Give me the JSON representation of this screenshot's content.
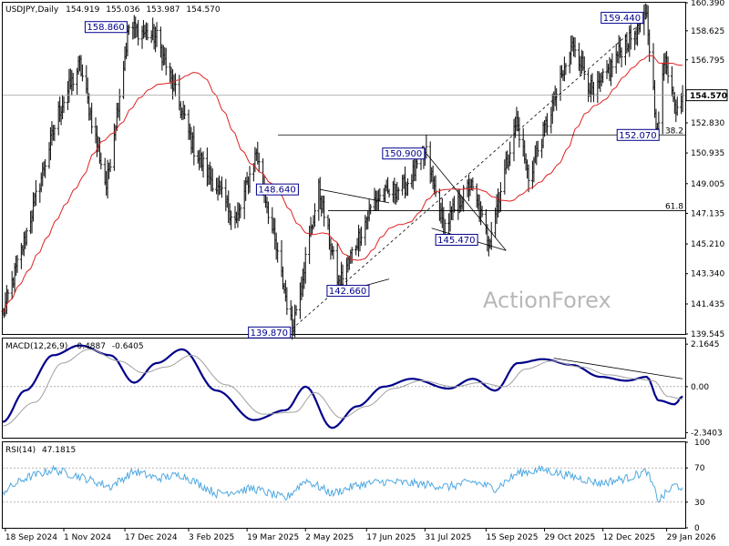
{
  "chart_data": [
    {
      "type": "ohlc",
      "panel": "price",
      "header": {
        "symbol": "USDJPY,Daily",
        "open": "154.919",
        "high": "155.036",
        "low": "153.987",
        "close": "154.570"
      },
      "ylim": [
        139.545,
        160.39
      ],
      "y_tick_labels": [
        "160.390",
        "158.625",
        "156.795",
        "154.570",
        "152.830",
        "150.935",
        "149.005",
        "147.135",
        "145.210",
        "143.340",
        "141.435",
        "139.545"
      ],
      "last_price_label": "154.570",
      "last_price": 154.57,
      "ma_line_color": "#e02020",
      "bar_color": "#1a1a1a",
      "horizontal_levels": [
        {
          "label": "38.2",
          "value": 152.07
        },
        {
          "label": "61.8",
          "value": 147.3
        }
      ],
      "callouts": [
        {
          "label": "158.860",
          "value": 158.86,
          "date": "2024-12-20"
        },
        {
          "label": "148.640",
          "value": 148.64,
          "date": "2025-04-28"
        },
        {
          "label": "142.660",
          "value": 142.66,
          "date": "2025-05-21"
        },
        {
          "label": "139.870",
          "value": 139.87,
          "date": "2025-04-22"
        },
        {
          "label": "150.900",
          "value": 150.9,
          "date": "2025-08-01"
        },
        {
          "label": "145.470",
          "value": 145.47,
          "date": "2025-09-10"
        },
        {
          "label": "159.440",
          "value": 159.44,
          "date": "2026-01-14"
        },
        {
          "label": "152.070",
          "value": 152.07,
          "date": "2026-01-26"
        }
      ],
      "pivots": [
        {
          "date": "2024-09-16",
          "value": 140.8
        },
        {
          "date": "2024-10-01",
          "value": 145.0
        },
        {
          "date": "2024-10-28",
          "value": 153.5
        },
        {
          "date": "2024-11-13",
          "value": 156.5
        },
        {
          "date": "2024-12-03",
          "value": 148.8
        },
        {
          "date": "2024-12-20",
          "value": 158.86
        },
        {
          "date": "2025-01-10",
          "value": 158.2
        },
        {
          "date": "2025-02-07",
          "value": 151.2
        },
        {
          "date": "2025-03-11",
          "value": 146.6
        },
        {
          "date": "2025-03-26",
          "value": 151.0
        },
        {
          "date": "2025-04-22",
          "value": 139.87
        },
        {
          "date": "2025-05-12",
          "value": 148.64
        },
        {
          "date": "2025-05-27",
          "value": 142.66
        },
        {
          "date": "2025-06-23",
          "value": 148.0
        },
        {
          "date": "2025-07-16",
          "value": 148.9
        },
        {
          "date": "2025-08-01",
          "value": 150.9
        },
        {
          "date": "2025-08-14",
          "value": 146.2
        },
        {
          "date": "2025-09-03",
          "value": 149.0
        },
        {
          "date": "2025-09-17",
          "value": 145.47
        },
        {
          "date": "2025-10-08",
          "value": 153.0
        },
        {
          "date": "2025-10-17",
          "value": 149.4
        },
        {
          "date": "2025-11-20",
          "value": 157.9
        },
        {
          "date": "2025-12-05",
          "value": 154.5
        },
        {
          "date": "2025-12-26",
          "value": 157.5
        },
        {
          "date": "2026-01-14",
          "value": 159.44
        },
        {
          "date": "2026-01-22",
          "value": 152.07
        },
        {
          "date": "2026-01-28",
          "value": 157.2
        },
        {
          "date": "2026-02-04",
          "value": 153.8
        },
        {
          "date": "2026-02-10",
          "value": 154.57
        }
      ],
      "trendlines": [
        {
          "points": [
            [
              "2025-04-22",
              139.87
            ],
            [
              "2026-01-14",
              159.44
            ]
          ],
          "style": "dashed"
        },
        {
          "points": [
            [
              "2025-05-13",
              148.64
            ],
            [
              "2025-07-04",
              147.8
            ]
          ],
          "style": "solid"
        },
        {
          "points": [
            [
              "2025-05-21",
              142.0
            ],
            [
              "2025-07-04",
              143.0
            ]
          ],
          "style": "solid"
        },
        {
          "points": [
            [
              "2025-08-01",
              150.9
            ],
            [
              "2025-09-30",
              144.8
            ]
          ],
          "style": "solid"
        },
        {
          "points": [
            [
              "2025-08-05",
              146.2
            ],
            [
              "2025-09-30",
              144.8
            ]
          ],
          "style": "solid"
        }
      ],
      "watermark": "ActionForex"
    },
    {
      "type": "line",
      "panel": "macd",
      "header": {
        "label": "MACD(12,26,9)",
        "macd": "-0.4887",
        "signal": "-0.6405"
      },
      "ylim": [
        -2.6,
        2.45
      ],
      "y_tick_labels": [
        "2.1645",
        "0.00",
        "-2.3403"
      ],
      "series": [
        {
          "name": "MACD",
          "color": "#00008b",
          "points": [
            [
              "2024-09-16",
              -1.8
            ],
            [
              "2024-10-03",
              -0.2
            ],
            [
              "2024-10-24",
              1.6
            ],
            [
              "2024-11-13",
              2.1
            ],
            [
              "2024-12-06",
              1.6
            ],
            [
              "2024-12-24",
              0.2
            ],
            [
              "2025-01-10",
              1.2
            ],
            [
              "2025-01-29",
              1.9
            ],
            [
              "2025-02-24",
              -0.2
            ],
            [
              "2025-03-24",
              -1.7
            ],
            [
              "2025-04-17",
              -1.2
            ],
            [
              "2025-05-02",
              0.0
            ],
            [
              "2025-05-22",
              -2.1
            ],
            [
              "2025-06-10",
              -1.0
            ],
            [
              "2025-06-30",
              0.0
            ],
            [
              "2025-07-21",
              0.4
            ],
            [
              "2025-08-18",
              -0.1
            ],
            [
              "2025-09-05",
              0.4
            ],
            [
              "2025-09-22",
              -0.2
            ],
            [
              "2025-10-09",
              1.2
            ],
            [
              "2025-10-28",
              1.4
            ],
            [
              "2025-11-19",
              1.1
            ],
            [
              "2025-12-10",
              0.5
            ],
            [
              "2025-12-30",
              0.3
            ],
            [
              "2026-01-14",
              0.5
            ],
            [
              "2026-01-23",
              -0.7
            ],
            [
              "2026-02-04",
              -0.9
            ],
            [
              "2026-02-10",
              -0.49
            ]
          ]
        },
        {
          "name": "Signal",
          "color": "#a0a0a0",
          "points": [
            [
              "2024-09-16",
              -2.0
            ],
            [
              "2024-10-10",
              -0.8
            ],
            [
              "2024-10-31",
              1.2
            ],
            [
              "2024-11-20",
              1.9
            ],
            [
              "2024-12-13",
              1.3
            ],
            [
              "2024-12-31",
              0.7
            ],
            [
              "2025-01-17",
              1.0
            ],
            [
              "2025-02-05",
              1.6
            ],
            [
              "2025-03-03",
              0.1
            ],
            [
              "2025-03-31",
              -1.4
            ],
            [
              "2025-04-24",
              -1.3
            ],
            [
              "2025-05-09",
              -0.3
            ],
            [
              "2025-05-29",
              -1.6
            ],
            [
              "2025-06-17",
              -1.0
            ],
            [
              "2025-07-07",
              -0.1
            ],
            [
              "2025-07-28",
              0.3
            ],
            [
              "2025-08-22",
              0.0
            ],
            [
              "2025-09-10",
              0.2
            ],
            [
              "2025-09-29",
              0.0
            ],
            [
              "2025-10-15",
              0.9
            ],
            [
              "2025-11-03",
              1.3
            ],
            [
              "2025-11-26",
              1.0
            ],
            [
              "2025-12-16",
              0.6
            ],
            [
              "2026-01-06",
              0.4
            ],
            [
              "2026-01-19",
              0.3
            ],
            [
              "2026-01-30",
              -0.5
            ],
            [
              "2026-02-10",
              -0.64
            ]
          ]
        }
      ],
      "trendlines": [
        {
          "points": [
            [
              "2025-11-05",
              1.45
            ],
            [
              "2026-02-10",
              0.4
            ]
          ]
        }
      ]
    },
    {
      "type": "line",
      "panel": "rsi",
      "header": {
        "label": "RSI(14)",
        "value": "47.1815"
      },
      "ylim": [
        0,
        100
      ],
      "y_tick_labels": [
        "100",
        "70",
        "30",
        "0"
      ],
      "levels": [
        70,
        30
      ],
      "series": [
        {
          "name": "RSI",
          "color": "#4fa8e0",
          "points": [
            [
              "2024-09-16",
              42
            ],
            [
              "2024-10-03",
              58
            ],
            [
              "2024-10-24",
              68
            ],
            [
              "2024-11-13",
              60
            ],
            [
              "2024-12-06",
              48
            ],
            [
              "2024-12-24",
              66
            ],
            [
              "2025-01-10",
              58
            ],
            [
              "2025-01-29",
              62
            ],
            [
              "2025-02-24",
              40
            ],
            [
              "2025-03-24",
              46
            ],
            [
              "2025-04-17",
              34
            ],
            [
              "2025-05-02",
              56
            ],
            [
              "2025-05-22",
              40
            ],
            [
              "2025-06-10",
              50
            ],
            [
              "2025-06-30",
              54
            ],
            [
              "2025-07-21",
              52
            ],
            [
              "2025-08-18",
              48
            ],
            [
              "2025-09-05",
              54
            ],
            [
              "2025-09-22",
              46
            ],
            [
              "2025-10-09",
              64
            ],
            [
              "2025-10-28",
              68
            ],
            [
              "2025-11-19",
              60
            ],
            [
              "2025-12-10",
              52
            ],
            [
              "2025-12-30",
              58
            ],
            [
              "2026-01-14",
              66
            ],
            [
              "2026-01-23",
              32
            ],
            [
              "2026-02-04",
              50
            ],
            [
              "2026-02-10",
              47.18
            ]
          ]
        }
      ]
    }
  ],
  "x_axis": {
    "labels": [
      {
        "label": "18 Sep 2024",
        "date": "2024-09-18"
      },
      {
        "label": "1 Nov 2024",
        "date": "2024-11-01"
      },
      {
        "label": "17 Dec 2024",
        "date": "2024-12-17"
      },
      {
        "label": "3 Feb 2025",
        "date": "2025-02-03"
      },
      {
        "label": "19 Mar 2025",
        "date": "2025-03-19"
      },
      {
        "label": "2 May 2025",
        "date": "2025-05-02"
      },
      {
        "label": "17 Jun 2025",
        "date": "2025-06-17"
      },
      {
        "label": "31 Jul 2025",
        "date": "2025-07-31"
      },
      {
        "label": "15 Sep 2025",
        "date": "2025-09-15"
      },
      {
        "label": "29 Oct 2025",
        "date": "2025-10-29"
      },
      {
        "label": "12 Dec 2025",
        "date": "2025-12-12"
      },
      {
        "label": "29 Jan 2026",
        "date": "2026-01-29"
      }
    ],
    "range": [
      "2024-09-16",
      "2026-02-12"
    ]
  }
}
